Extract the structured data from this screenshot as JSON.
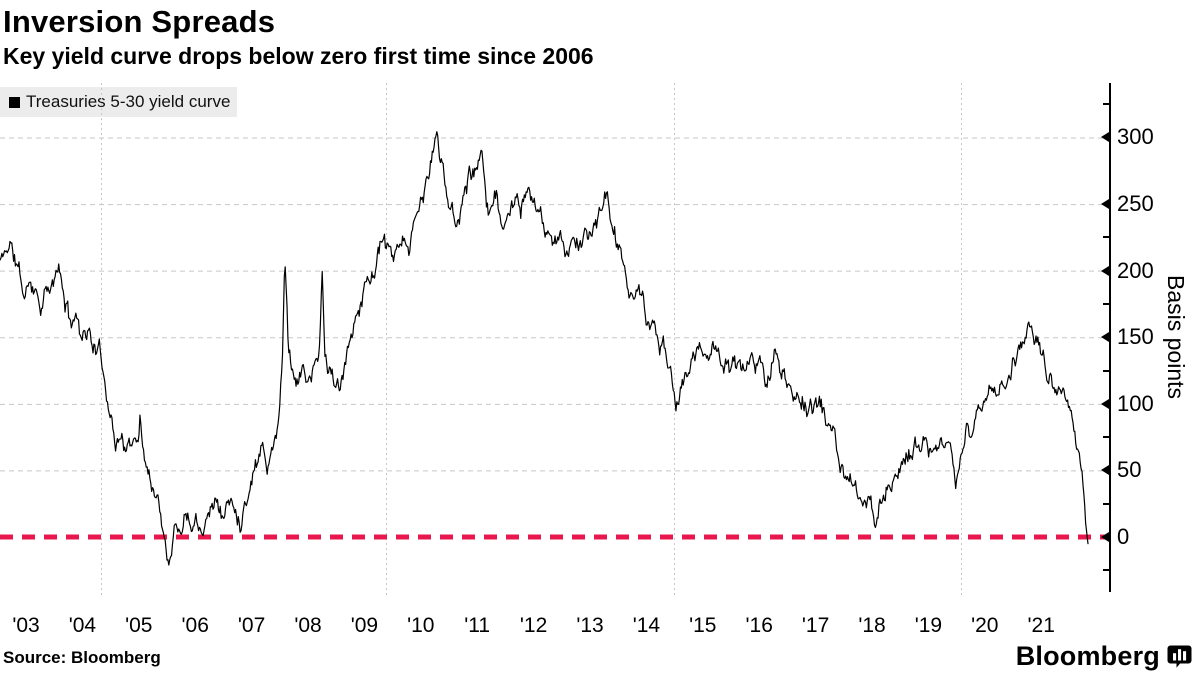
{
  "header": {
    "title": "Inversion Spreads",
    "subtitle": "Key yield curve drops below zero first time since 2006"
  },
  "legend": {
    "label": "Treasuries 5-30 yield curve",
    "marker_color": "#000000"
  },
  "footer": {
    "source": "Source: Bloomberg",
    "brand": "Bloomberg"
  },
  "colors": {
    "line": "#000000",
    "zero_line": "#e8184f",
    "grid": "#c7c7c7",
    "legend_bg": "#ececec",
    "axis": "#000000"
  },
  "chart_data": {
    "type": "line",
    "title": "Inversion Spreads",
    "subtitle": "Key yield curve drops below zero first time since 2006",
    "series_name": "Treasuries 5-30 yield curve",
    "xlabel": "",
    "ylabel": "Basis points",
    "unit": "basis points",
    "x_tick_labels": [
      "'03",
      "'04",
      "'05",
      "'06",
      "'07",
      "'08",
      "'09",
      "'10",
      "'11",
      "'12",
      "'13",
      "'14",
      "'15",
      "'16",
      "'17",
      "'18",
      "'19",
      "'20",
      "'21"
    ],
    "x_tick_years": [
      2003,
      2004,
      2005,
      2006,
      2007,
      2008,
      2009,
      2010,
      2011,
      2012,
      2013,
      2014,
      2015,
      2016,
      2017,
      2018,
      2019,
      2020,
      2021
    ],
    "y_ticks": [
      0,
      50,
      100,
      150,
      200,
      250,
      300
    ],
    "y_minor_ticks": [
      -25,
      25,
      75,
      125,
      175,
      225,
      325
    ],
    "ylim": [
      -41,
      343
    ],
    "xlim_years": [
      2002.54,
      2022.22
    ],
    "grid": {
      "h_values": [
        50,
        100,
        150,
        200,
        250,
        300
      ],
      "v_years": [
        2004.33,
        2009.38,
        2014.49,
        2019.58
      ]
    },
    "zero_line": {
      "value": 0,
      "style": "dashed",
      "color": "#e8184f"
    },
    "legend_position": "top-left",
    "axis_side": "right",
    "points": [
      [
        2002.54,
        208
      ],
      [
        2002.65,
        215
      ],
      [
        2002.72,
        222
      ],
      [
        2002.79,
        210
      ],
      [
        2002.89,
        196
      ],
      [
        2002.98,
        178
      ],
      [
        2003.07,
        195
      ],
      [
        2003.18,
        186
      ],
      [
        2003.28,
        176
      ],
      [
        2003.36,
        186
      ],
      [
        2003.46,
        183
      ],
      [
        2003.57,
        203
      ],
      [
        2003.67,
        180
      ],
      [
        2003.78,
        162
      ],
      [
        2003.87,
        168
      ],
      [
        2003.96,
        155
      ],
      [
        2004.06,
        158
      ],
      [
        2004.17,
        148
      ],
      [
        2004.24,
        142
      ],
      [
        2004.31,
        136
      ],
      [
        2004.38,
        123
      ],
      [
        2004.45,
        108
      ],
      [
        2004.53,
        88
      ],
      [
        2004.58,
        66
      ],
      [
        2004.63,
        80
      ],
      [
        2004.7,
        74
      ],
      [
        2004.77,
        68
      ],
      [
        2004.84,
        65
      ],
      [
        2004.92,
        70
      ],
      [
        2004.99,
        78
      ],
      [
        2005.02,
        94
      ],
      [
        2005.06,
        70
      ],
      [
        2005.13,
        58
      ],
      [
        2005.2,
        46
      ],
      [
        2005.29,
        36
      ],
      [
        2005.38,
        22
      ],
      [
        2005.45,
        8
      ],
      [
        2005.5,
        -6
      ],
      [
        2005.54,
        -13
      ],
      [
        2005.59,
        -2
      ],
      [
        2005.64,
        10
      ],
      [
        2005.7,
        4
      ],
      [
        2005.77,
        12
      ],
      [
        2005.84,
        22
      ],
      [
        2005.91,
        14
      ],
      [
        2006.0,
        18
      ],
      [
        2006.09,
        12
      ],
      [
        2006.17,
        16
      ],
      [
        2006.26,
        25
      ],
      [
        2006.35,
        30
      ],
      [
        2006.42,
        22
      ],
      [
        2006.49,
        17
      ],
      [
        2006.56,
        23
      ],
      [
        2006.64,
        27
      ],
      [
        2006.71,
        18
      ],
      [
        2006.79,
        12
      ],
      [
        2006.88,
        28
      ],
      [
        2006.97,
        40
      ],
      [
        2007.06,
        57
      ],
      [
        2007.15,
        64
      ],
      [
        2007.2,
        78
      ],
      [
        2007.27,
        53
      ],
      [
        2007.34,
        60
      ],
      [
        2007.42,
        76
      ],
      [
        2007.49,
        95
      ],
      [
        2007.54,
        125
      ],
      [
        2007.59,
        215
      ],
      [
        2007.65,
        150
      ],
      [
        2007.72,
        128
      ],
      [
        2007.81,
        118
      ],
      [
        2007.89,
        125
      ],
      [
        2008.0,
        118
      ],
      [
        2008.11,
        125
      ],
      [
        2008.2,
        135
      ],
      [
        2008.25,
        198
      ],
      [
        2008.3,
        135
      ],
      [
        2008.39,
        125
      ],
      [
        2008.48,
        115
      ],
      [
        2008.57,
        107
      ],
      [
        2008.66,
        125
      ],
      [
        2008.75,
        148
      ],
      [
        2008.85,
        168
      ],
      [
        2008.96,
        182
      ],
      [
        2009.06,
        192
      ],
      [
        2009.17,
        200
      ],
      [
        2009.28,
        220
      ],
      [
        2009.38,
        215
      ],
      [
        2009.49,
        208
      ],
      [
        2009.6,
        212
      ],
      [
        2009.7,
        214
      ],
      [
        2009.81,
        222
      ],
      [
        2009.92,
        238
      ],
      [
        2010.02,
        252
      ],
      [
        2010.13,
        270
      ],
      [
        2010.22,
        288
      ],
      [
        2010.29,
        308
      ],
      [
        2010.34,
        285
      ],
      [
        2010.41,
        268
      ],
      [
        2010.5,
        250
      ],
      [
        2010.59,
        243
      ],
      [
        2010.68,
        240
      ],
      [
        2010.77,
        258
      ],
      [
        2010.86,
        278
      ],
      [
        2010.94,
        270
      ],
      [
        2011.01,
        280
      ],
      [
        2011.09,
        285
      ],
      [
        2011.16,
        262
      ],
      [
        2011.25,
        248
      ],
      [
        2011.33,
        255
      ],
      [
        2011.42,
        240
      ],
      [
        2011.51,
        232
      ],
      [
        2011.6,
        243
      ],
      [
        2011.69,
        252
      ],
      [
        2011.78,
        247
      ],
      [
        2011.87,
        252
      ],
      [
        2011.95,
        248
      ],
      [
        2012.04,
        250
      ],
      [
        2012.13,
        243
      ],
      [
        2012.22,
        228
      ],
      [
        2012.31,
        215
      ],
      [
        2012.4,
        220
      ],
      [
        2012.49,
        225
      ],
      [
        2012.57,
        218
      ],
      [
        2012.66,
        222
      ],
      [
        2012.75,
        216
      ],
      [
        2012.84,
        220
      ],
      [
        2012.93,
        226
      ],
      [
        2013.02,
        230
      ],
      [
        2013.11,
        235
      ],
      [
        2013.2,
        242
      ],
      [
        2013.27,
        250
      ],
      [
        2013.32,
        256
      ],
      [
        2013.39,
        235
      ],
      [
        2013.5,
        215
      ],
      [
        2013.6,
        200
      ],
      [
        2013.71,
        188
      ],
      [
        2013.82,
        182
      ],
      [
        2013.92,
        177
      ],
      [
        2014.03,
        162
      ],
      [
        2014.13,
        155
      ],
      [
        2014.24,
        145
      ],
      [
        2014.35,
        136
      ],
      [
        2014.44,
        126
      ],
      [
        2014.53,
        105
      ],
      [
        2014.61,
        113
      ],
      [
        2014.72,
        121
      ],
      [
        2014.83,
        131
      ],
      [
        2014.93,
        143
      ],
      [
        2015.04,
        138
      ],
      [
        2015.15,
        142
      ],
      [
        2015.23,
        150
      ],
      [
        2015.34,
        132
      ],
      [
        2015.45,
        124
      ],
      [
        2015.55,
        128
      ],
      [
        2015.66,
        131
      ],
      [
        2015.77,
        133
      ],
      [
        2015.87,
        131
      ],
      [
        2015.98,
        129
      ],
      [
        2016.09,
        123
      ],
      [
        2016.19,
        116
      ],
      [
        2016.28,
        145
      ],
      [
        2016.37,
        122
      ],
      [
        2016.48,
        113
      ],
      [
        2016.58,
        109
      ],
      [
        2016.69,
        108
      ],
      [
        2016.79,
        101
      ],
      [
        2016.9,
        96
      ],
      [
        2017.01,
        99
      ],
      [
        2017.11,
        96
      ],
      [
        2017.22,
        86
      ],
      [
        2017.33,
        71
      ],
      [
        2017.43,
        55
      ],
      [
        2017.54,
        45
      ],
      [
        2017.65,
        39
      ],
      [
        2017.75,
        29
      ],
      [
        2017.86,
        24
      ],
      [
        2017.97,
        23
      ],
      [
        2018.07,
        18
      ],
      [
        2018.18,
        27
      ],
      [
        2018.28,
        39
      ],
      [
        2018.39,
        47
      ],
      [
        2018.5,
        52
      ],
      [
        2018.6,
        59
      ],
      [
        2018.71,
        64
      ],
      [
        2018.82,
        71
      ],
      [
        2018.92,
        75
      ],
      [
        2019.03,
        64
      ],
      [
        2019.14,
        62
      ],
      [
        2019.24,
        63
      ],
      [
        2019.35,
        64
      ],
      [
        2019.44,
        50
      ],
      [
        2019.49,
        38
      ],
      [
        2019.56,
        58
      ],
      [
        2019.63,
        66
      ],
      [
        2019.68,
        92
      ],
      [
        2019.74,
        80
      ],
      [
        2019.84,
        91
      ],
      [
        2019.95,
        100
      ],
      [
        2020.06,
        105
      ],
      [
        2020.16,
        108
      ],
      [
        2020.27,
        113
      ],
      [
        2020.38,
        121
      ],
      [
        2020.48,
        129
      ],
      [
        2020.59,
        137
      ],
      [
        2020.7,
        151
      ],
      [
        2020.77,
        162
      ],
      [
        2020.84,
        155
      ],
      [
        2020.91,
        149
      ],
      [
        2020.98,
        147
      ],
      [
        2021.05,
        131
      ],
      [
        2021.12,
        119
      ],
      [
        2021.19,
        112
      ],
      [
        2021.26,
        108
      ],
      [
        2021.33,
        105
      ],
      [
        2021.4,
        99
      ],
      [
        2021.48,
        93
      ],
      [
        2021.55,
        82
      ],
      [
        2021.62,
        68
      ],
      [
        2021.67,
        73
      ],
      [
        2021.72,
        52
      ],
      [
        2021.76,
        35
      ],
      [
        2021.79,
        12
      ],
      [
        2021.83,
        -5
      ]
    ]
  }
}
